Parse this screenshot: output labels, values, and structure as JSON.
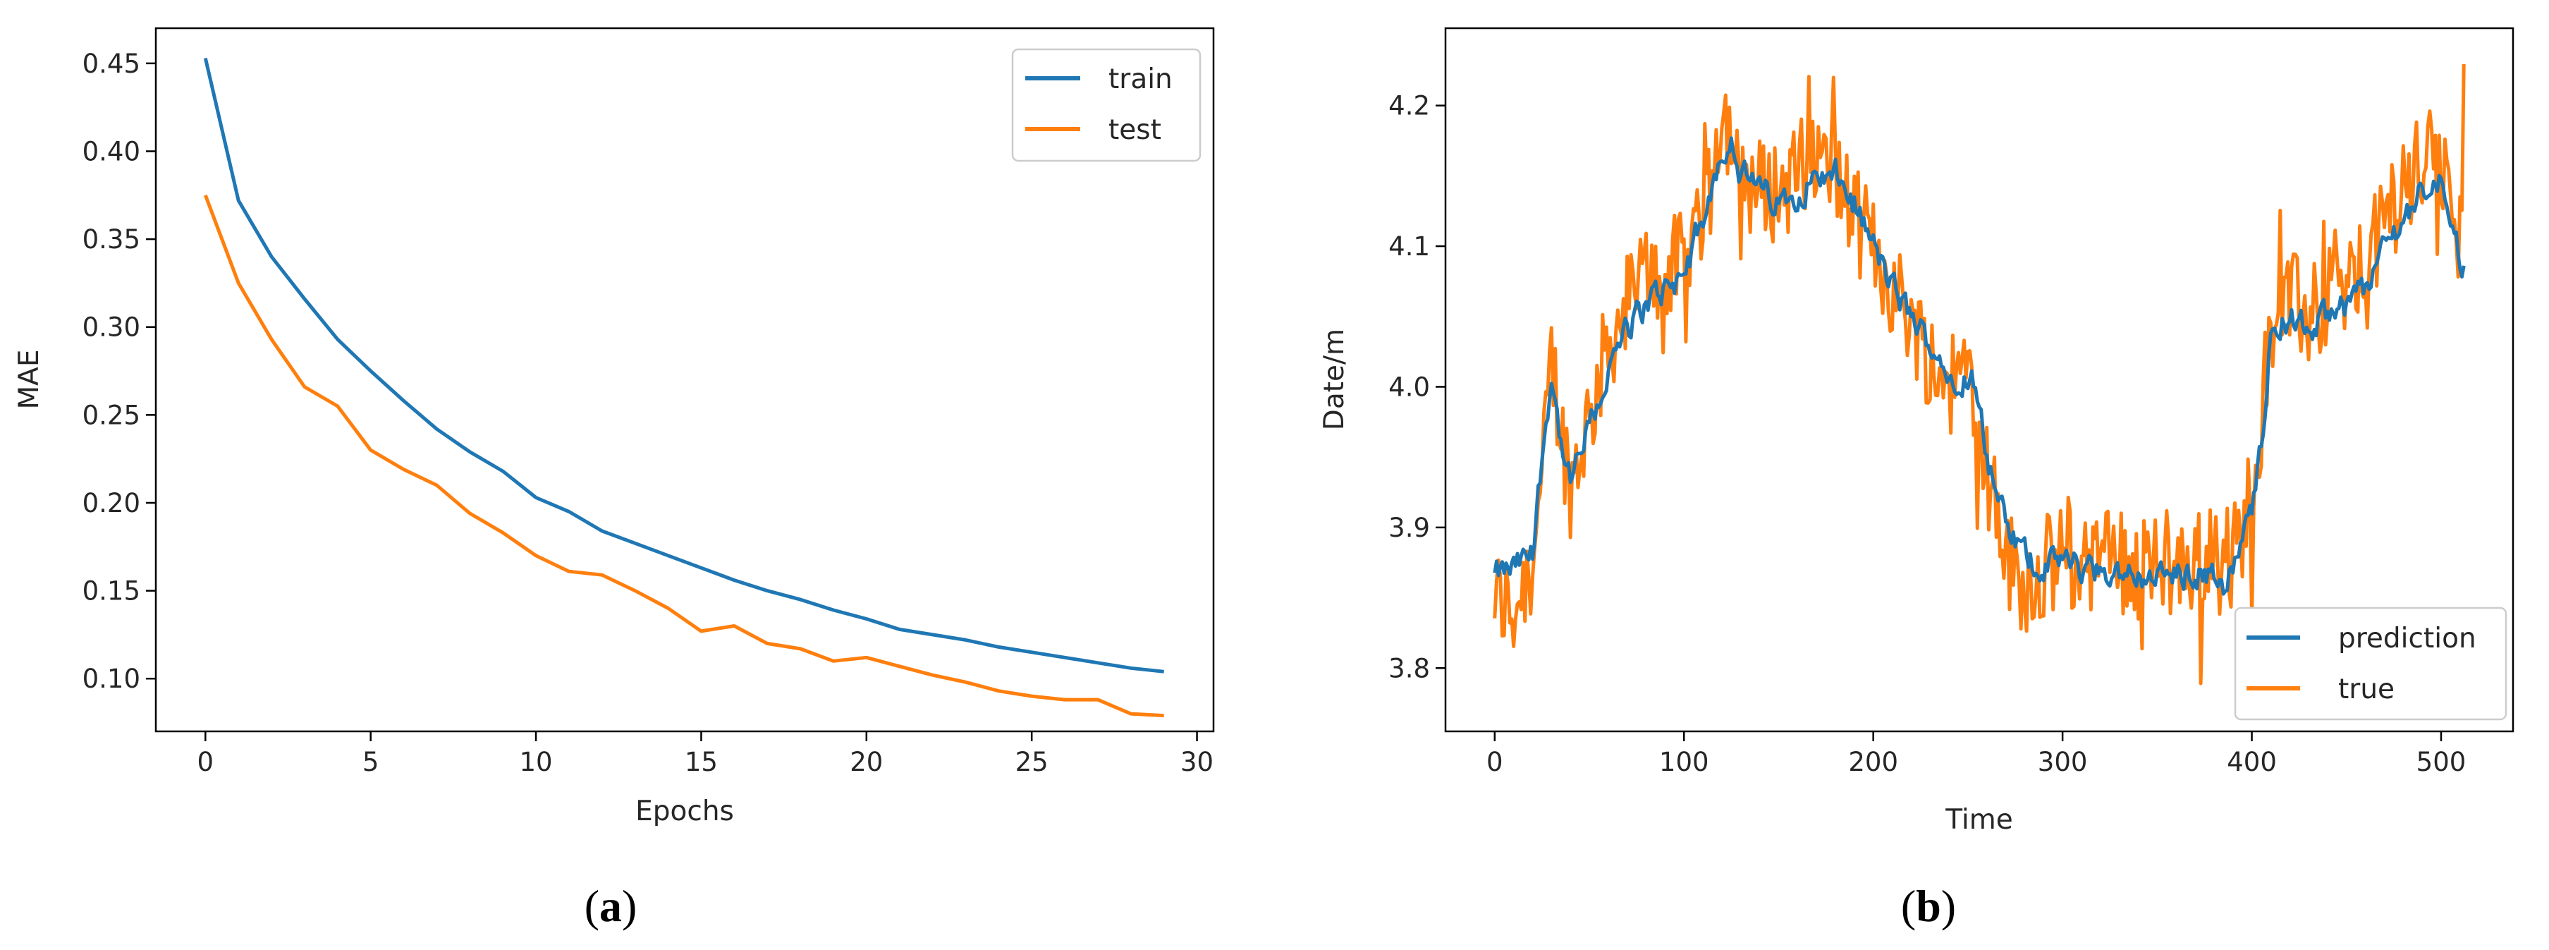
{
  "panels": [
    {
      "caption_open": "(",
      "caption_letter": "a",
      "caption_close": ")"
    },
    {
      "caption_open": "(",
      "caption_letter": "b",
      "caption_close": ")"
    }
  ],
  "chart_data": [
    {
      "type": "line",
      "title": "",
      "xlabel": "Epochs",
      "ylabel": "MAE",
      "xlim": [
        -1.5,
        30.5
      ],
      "ylim": [
        0.07,
        0.47
      ],
      "xticks": [
        0,
        5,
        10,
        15,
        20,
        25,
        30
      ],
      "xtick_labels": [
        "0",
        "5",
        "10",
        "15",
        "20",
        "25",
        "30"
      ],
      "yticks": [
        0.1,
        0.15,
        0.2,
        0.25,
        0.3,
        0.35,
        0.4,
        0.45
      ],
      "ytick_labels": [
        "0.10",
        "0.15",
        "0.20",
        "0.25",
        "0.30",
        "0.35",
        "0.40",
        "0.45"
      ],
      "grid": false,
      "legend_position": "top-right",
      "x": [
        0,
        1,
        2,
        3,
        4,
        5,
        6,
        7,
        8,
        9,
        10,
        11,
        12,
        13,
        14,
        15,
        16,
        17,
        18,
        19,
        20,
        21,
        22,
        23,
        24,
        25,
        26,
        27,
        28,
        29
      ],
      "series": [
        {
          "name": "train",
          "color": "#1f77b4",
          "values": [
            0.453,
            0.372,
            0.34,
            0.316,
            0.293,
            0.275,
            0.258,
            0.242,
            0.229,
            0.218,
            0.203,
            0.195,
            0.184,
            0.177,
            0.17,
            0.163,
            0.156,
            0.15,
            0.145,
            0.139,
            0.134,
            0.128,
            0.125,
            0.122,
            0.118,
            0.115,
            0.112,
            0.109,
            0.106,
            0.104
          ]
        },
        {
          "name": "test",
          "color": "#ff7f0e",
          "values": [
            0.375,
            0.325,
            0.293,
            0.266,
            0.255,
            0.23,
            0.219,
            0.21,
            0.194,
            0.183,
            0.17,
            0.161,
            0.159,
            0.15,
            0.14,
            0.127,
            0.13,
            0.12,
            0.117,
            0.11,
            0.112,
            0.107,
            0.102,
            0.098,
            0.093,
            0.09,
            0.088,
            0.088,
            0.08,
            0.079
          ]
        }
      ]
    },
    {
      "type": "line",
      "title": "",
      "xlabel": "Time",
      "ylabel": "Date/m",
      "xlim": [
        -26,
        538
      ],
      "ylim": [
        3.755,
        4.255
      ],
      "xticks": [
        0,
        100,
        200,
        300,
        400,
        500
      ],
      "xtick_labels": [
        "0",
        "100",
        "200",
        "300",
        "400",
        "500"
      ],
      "yticks": [
        3.8,
        3.9,
        4.0,
        4.1,
        4.2
      ],
      "ytick_labels": [
        "3.8",
        "3.9",
        "4.0",
        "4.1",
        "4.2"
      ],
      "grid": false,
      "legend_position": "lower-right",
      "anchors": {
        "x": [
          0,
          10,
          20,
          25,
          30,
          35,
          40,
          50,
          60,
          70,
          80,
          90,
          100,
          110,
          115,
          120,
          125,
          130,
          140,
          150,
          160,
          170,
          180,
          190,
          200,
          210,
          220,
          230,
          240,
          250,
          255,
          260,
          270,
          280,
          290,
          300,
          310,
          320,
          340,
          360,
          380,
          385,
          390,
          395,
          400,
          405,
          410,
          420,
          430,
          440,
          450,
          460,
          470,
          480,
          490,
          500,
          505,
          510,
          512
        ],
        "pred": [
          3.865,
          3.87,
          3.88,
          3.95,
          4.01,
          3.96,
          3.93,
          3.97,
          4.01,
          4.04,
          4.06,
          4.07,
          4.08,
          4.12,
          4.14,
          4.17,
          4.18,
          4.15,
          4.14,
          4.13,
          4.14,
          4.15,
          4.15,
          4.13,
          4.1,
          4.07,
          4.05,
          4.03,
          4.01,
          4.01,
          4.0,
          3.95,
          3.9,
          3.88,
          3.87,
          3.88,
          3.87,
          3.87,
          3.865,
          3.865,
          3.87,
          3.86,
          3.87,
          3.89,
          3.91,
          3.96,
          4.04,
          4.05,
          4.04,
          4.05,
          4.06,
          4.07,
          4.1,
          4.12,
          4.14,
          4.15,
          4.13,
          4.09,
          4.09
        ],
        "true": [
          3.85,
          3.84,
          3.88,
          3.93,
          4.02,
          3.97,
          3.93,
          3.98,
          4.03,
          4.06,
          4.08,
          4.08,
          4.09,
          4.13,
          4.16,
          4.2,
          4.18,
          4.15,
          4.14,
          4.14,
          4.15,
          4.16,
          4.15,
          4.12,
          4.1,
          4.07,
          4.05,
          4.02,
          4.0,
          4.02,
          3.99,
          3.94,
          3.88,
          3.86,
          3.87,
          3.88,
          3.87,
          3.88,
          3.87,
          3.87,
          3.88,
          3.86,
          3.88,
          3.9,
          3.93,
          3.98,
          4.05,
          4.06,
          4.05,
          4.06,
          4.07,
          4.08,
          4.12,
          4.14,
          4.16,
          4.16,
          4.13,
          4.1,
          4.2
        ]
      },
      "series": [
        {
          "name": "prediction",
          "color": "#1f77b4"
        },
        {
          "name": "true",
          "color": "#ff7f0e"
        }
      ]
    }
  ]
}
